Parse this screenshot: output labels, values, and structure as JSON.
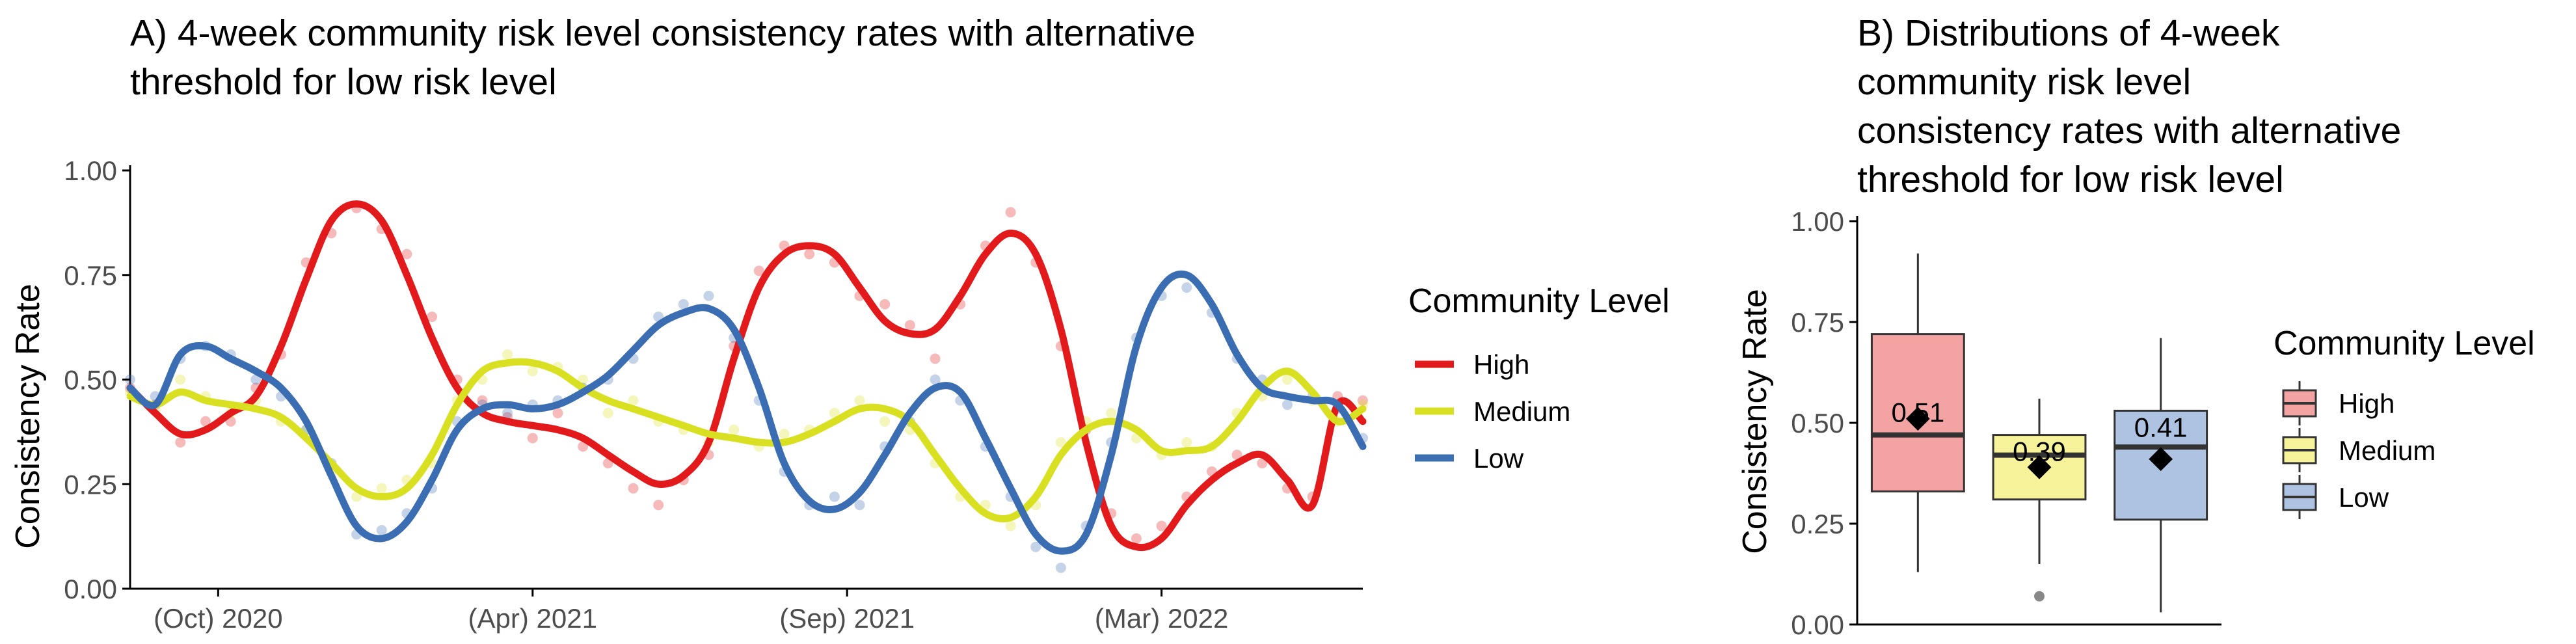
{
  "colors": {
    "high": "#e31a1c",
    "medium": "#d9e021",
    "low": "#3b6db3",
    "high_fill": "#f4a3a3",
    "medium_fill": "#f6f39b",
    "low_fill": "#aec3e2",
    "axis": "#000000",
    "tick_text": "#4d4d4d"
  },
  "chart_data": [
    {
      "type": "line",
      "title_line1": "A) 4-week community risk level consistency rates with alternative",
      "title_line2": "threshold for low risk level",
      "xlabel": "",
      "ylabel": "Consistency Rate",
      "x_ticks": [
        "(Oct) 2020",
        "(Apr) 2021",
        "(Sep) 2021",
        "(Mar) 2022"
      ],
      "x_tick_positions": [
        7,
        32,
        57,
        82
      ],
      "xlim": [
        0,
        98
      ],
      "ylim": [
        0,
        1
      ],
      "y_ticks": [
        "0.00",
        "0.25",
        "0.50",
        "0.75",
        "1.00"
      ],
      "legend_title": "Community Level",
      "legend_position": "right",
      "grid": false,
      "x": [
        0,
        2,
        4,
        6,
        8,
        10,
        12,
        14,
        16,
        18,
        20,
        22,
        24,
        26,
        28,
        30,
        32,
        34,
        36,
        38,
        40,
        42,
        44,
        46,
        48,
        50,
        52,
        54,
        56,
        58,
        60,
        62,
        64,
        66,
        68,
        70,
        72,
        74,
        76,
        78,
        80,
        82,
        84,
        86,
        88,
        90,
        92,
        94,
        96,
        98
      ],
      "series": [
        {
          "name": "High",
          "values": [
            0.48,
            0.42,
            0.37,
            0.38,
            0.42,
            0.46,
            0.58,
            0.74,
            0.88,
            0.92,
            0.88,
            0.75,
            0.6,
            0.48,
            0.42,
            0.4,
            0.39,
            0.38,
            0.36,
            0.32,
            0.28,
            0.25,
            0.27,
            0.35,
            0.55,
            0.72,
            0.8,
            0.82,
            0.8,
            0.72,
            0.64,
            0.61,
            0.62,
            0.7,
            0.8,
            0.85,
            0.8,
            0.62,
            0.35,
            0.15,
            0.1,
            0.12,
            0.2,
            0.26,
            0.3,
            0.32,
            0.26,
            0.2,
            0.44,
            0.4
          ]
        },
        {
          "name": "Medium",
          "values": [
            0.46,
            0.44,
            0.47,
            0.45,
            0.44,
            0.43,
            0.41,
            0.36,
            0.3,
            0.24,
            0.22,
            0.24,
            0.32,
            0.44,
            0.52,
            0.54,
            0.54,
            0.52,
            0.48,
            0.45,
            0.43,
            0.41,
            0.39,
            0.37,
            0.36,
            0.35,
            0.35,
            0.37,
            0.4,
            0.43,
            0.43,
            0.4,
            0.32,
            0.24,
            0.18,
            0.17,
            0.22,
            0.32,
            0.38,
            0.4,
            0.38,
            0.33,
            0.33,
            0.34,
            0.4,
            0.48,
            0.52,
            0.47,
            0.4,
            0.43
          ]
        },
        {
          "name": "Low",
          "values": [
            0.48,
            0.44,
            0.56,
            0.58,
            0.55,
            0.52,
            0.48,
            0.4,
            0.27,
            0.15,
            0.12,
            0.16,
            0.26,
            0.38,
            0.43,
            0.44,
            0.43,
            0.44,
            0.47,
            0.51,
            0.57,
            0.63,
            0.66,
            0.67,
            0.62,
            0.48,
            0.3,
            0.21,
            0.19,
            0.23,
            0.32,
            0.42,
            0.48,
            0.47,
            0.36,
            0.24,
            0.13,
            0.09,
            0.13,
            0.32,
            0.58,
            0.72,
            0.75,
            0.68,
            0.56,
            0.48,
            0.46,
            0.45,
            0.44,
            0.34
          ]
        }
      ],
      "points": [
        {
          "name": "High",
          "values": [
            0.48,
            0.44,
            0.35,
            0.4,
            0.4,
            0.48,
            0.56,
            0.78,
            0.85,
            0.91,
            0.86,
            0.8,
            0.65,
            0.5,
            0.45,
            0.41,
            0.36,
            0.42,
            0.34,
            0.3,
            0.24,
            0.2,
            0.26,
            0.32,
            0.58,
            0.76,
            0.82,
            0.8,
            0.78,
            0.7,
            0.68,
            0.63,
            0.55,
            0.68,
            0.82,
            0.9,
            0.78,
            0.58,
            0.38,
            0.18,
            0.12,
            0.15,
            0.22,
            0.28,
            0.32,
            0.3,
            0.24,
            0.22,
            0.46,
            0.45
          ]
        },
        {
          "name": "Medium",
          "values": [
            0.47,
            0.43,
            0.5,
            0.46,
            0.42,
            0.45,
            0.4,
            0.38,
            0.28,
            0.22,
            0.24,
            0.26,
            0.3,
            0.45,
            0.5,
            0.56,
            0.52,
            0.53,
            0.5,
            0.42,
            0.45,
            0.4,
            0.38,
            0.35,
            0.38,
            0.34,
            0.37,
            0.38,
            0.42,
            0.45,
            0.4,
            0.38,
            0.3,
            0.22,
            0.2,
            0.15,
            0.2,
            0.35,
            0.4,
            0.42,
            0.36,
            0.32,
            0.35,
            0.34,
            0.42,
            0.46,
            0.5,
            0.45,
            0.4,
            0.44
          ]
        },
        {
          "name": "Low",
          "values": [
            0.5,
            0.46,
            0.55,
            0.58,
            0.56,
            0.5,
            0.46,
            0.38,
            0.3,
            0.13,
            0.14,
            0.18,
            0.24,
            0.4,
            0.44,
            0.42,
            0.44,
            0.45,
            0.48,
            0.5,
            0.55,
            0.65,
            0.68,
            0.7,
            0.6,
            0.45,
            0.28,
            0.2,
            0.22,
            0.2,
            0.34,
            0.4,
            0.5,
            0.45,
            0.34,
            0.22,
            0.1,
            0.05,
            0.15,
            0.35,
            0.6,
            0.7,
            0.72,
            0.66,
            0.55,
            0.5,
            0.44,
            0.46,
            0.43,
            0.36
          ]
        }
      ]
    },
    {
      "type": "box",
      "title_lines": [
        "B) Distributions of 4-week",
        "community risk level",
        "consistency rates with alternative",
        "threshold for low risk level"
      ],
      "xlabel": "",
      "ylabel": "Consistency Rate",
      "ylim": [
        0,
        1
      ],
      "y_ticks": [
        "0.00",
        "0.25",
        "0.50",
        "0.75",
        "1.00"
      ],
      "legend_title": "Community Level",
      "legend_position": "right",
      "grid": false,
      "boxes": [
        {
          "name": "High",
          "min": 0.13,
          "q1": 0.33,
          "median": 0.47,
          "q3": 0.72,
          "max": 0.92,
          "mean": 0.51,
          "mean_label": "0.51",
          "outliers": []
        },
        {
          "name": "Medium",
          "min": 0.15,
          "q1": 0.31,
          "median": 0.42,
          "q3": 0.47,
          "max": 0.56,
          "mean": 0.39,
          "mean_label": "0.39",
          "outliers": [
            0.07
          ]
        },
        {
          "name": "Low",
          "min": 0.03,
          "q1": 0.26,
          "median": 0.44,
          "q3": 0.53,
          "max": 0.71,
          "mean": 0.41,
          "mean_label": "0.41",
          "outliers": []
        }
      ]
    }
  ]
}
